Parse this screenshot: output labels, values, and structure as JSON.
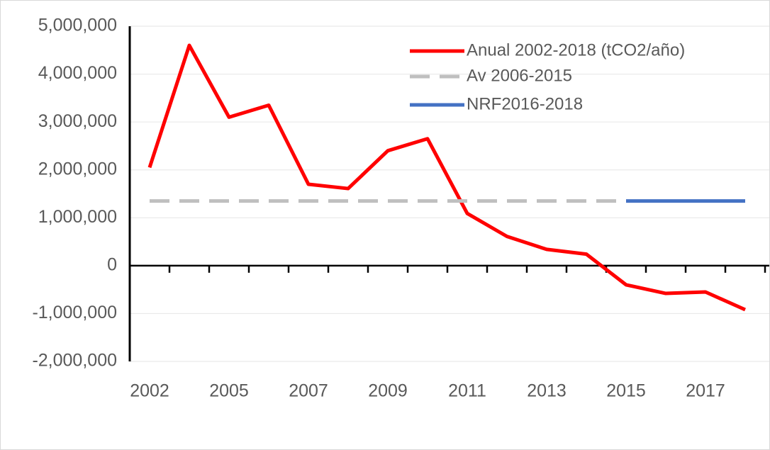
{
  "chart_data": {
    "type": "line",
    "categories": [
      "2002",
      null,
      "2005",
      null,
      "2007",
      null,
      "2009",
      null,
      "2011",
      null,
      "2013",
      null,
      "2015",
      null,
      "2017",
      null
    ],
    "series": [
      {
        "name": "Anual 2002-2018 (tCO2/año)",
        "color": "#ff0000",
        "style": "solid",
        "values": [
          2050000,
          4600000,
          3100000,
          3350000,
          1700000,
          1610000,
          2400000,
          2650000,
          1090000,
          610000,
          340000,
          240000,
          -400000,
          -580000,
          -550000,
          -920000
        ]
      },
      {
        "name": "Av 2006-2015",
        "color": "#bfbfbf",
        "style": "dashed",
        "values": [
          1350000,
          1350000,
          1350000,
          1350000,
          1350000,
          1350000,
          1350000,
          1350000,
          1350000,
          1350000,
          1350000,
          1350000,
          1350000,
          null,
          null,
          null
        ]
      },
      {
        "name": "NRF2016-2018",
        "color": "#4472c4",
        "style": "solid",
        "values": [
          null,
          null,
          null,
          null,
          null,
          null,
          null,
          null,
          null,
          null,
          null,
          null,
          1350000,
          1350000,
          1350000,
          1350000
        ]
      }
    ],
    "ylim": [
      -2000000,
      5000000
    ],
    "yticks": [
      {
        "value": -2000000,
        "label": "-2,000,000"
      },
      {
        "value": -1000000,
        "label": "-1,000,000"
      },
      0,
      {
        "value": 1000000,
        "label": "1,000,000"
      },
      {
        "value": 2000000,
        "label": "2,000,000"
      },
      {
        "value": 3000000,
        "label": "3,000,000"
      },
      {
        "value": 4000000,
        "label": "4,000,000"
      },
      {
        "value": 5000000,
        "label": "5,000,000"
      }
    ],
    "grid": true,
    "legend": "top-right"
  }
}
